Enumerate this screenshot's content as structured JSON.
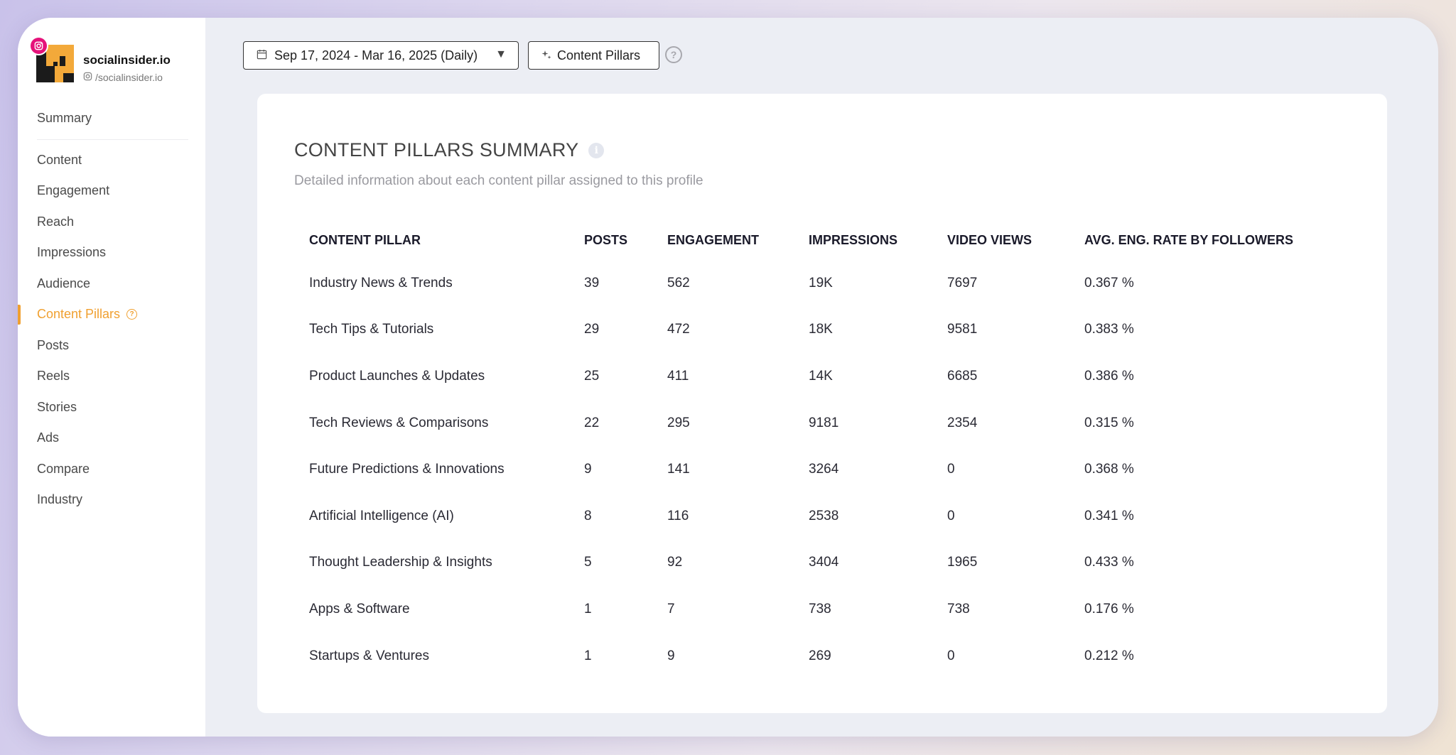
{
  "brand": {
    "name": "socialinsider.io",
    "handle": "/socialinsider.io"
  },
  "sidebar": {
    "items": [
      {
        "label": "Summary"
      },
      {
        "label": "Content"
      },
      {
        "label": "Engagement"
      },
      {
        "label": "Reach"
      },
      {
        "label": "Impressions"
      },
      {
        "label": "Audience"
      },
      {
        "label": "Content Pillars",
        "active": true
      },
      {
        "label": "Posts"
      },
      {
        "label": "Reels"
      },
      {
        "label": "Stories"
      },
      {
        "label": "Ads"
      },
      {
        "label": "Compare"
      },
      {
        "label": "Industry"
      }
    ]
  },
  "toolbar": {
    "date_range": "Sep 17, 2024 - Mar 16, 2025 (Daily)",
    "pillars_button": "Content Pillars",
    "help": "?"
  },
  "card": {
    "title": "CONTENT PILLARS SUMMARY",
    "subtitle": "Detailed information about each content pillar assigned to this profile",
    "columns": [
      "CONTENT PILLAR",
      "POSTS",
      "ENGAGEMENT",
      "IMPRESSIONS",
      "VIDEO VIEWS",
      "AVG. ENG. RATE BY FOLLOWERS"
    ],
    "rows": [
      [
        "Industry News & Trends",
        "39",
        "562",
        "19K",
        "7697",
        "0.367 %"
      ],
      [
        "Tech Tips & Tutorials",
        "29",
        "472",
        "18K",
        "9581",
        "0.383 %"
      ],
      [
        "Product Launches & Updates",
        "25",
        "411",
        "14K",
        "6685",
        "0.386 %"
      ],
      [
        "Tech Reviews & Comparisons",
        "22",
        "295",
        "9181",
        "2354",
        "0.315 %"
      ],
      [
        "Future Predictions & Innovations",
        "9",
        "141",
        "3264",
        "0",
        "0.368 %"
      ],
      [
        "Artificial Intelligence (AI)",
        "8",
        "116",
        "2538",
        "0",
        "0.341 %"
      ],
      [
        "Thought Leadership & Insights",
        "5",
        "92",
        "3404",
        "1965",
        "0.433 %"
      ],
      [
        "Apps & Software",
        "1",
        "7",
        "738",
        "738",
        "0.176 %"
      ],
      [
        "Startups & Ventures",
        "1",
        "9",
        "269",
        "0",
        "0.212 %"
      ]
    ]
  },
  "colors": {
    "accent": "#f0a030",
    "instagram": "#e5127a"
  }
}
